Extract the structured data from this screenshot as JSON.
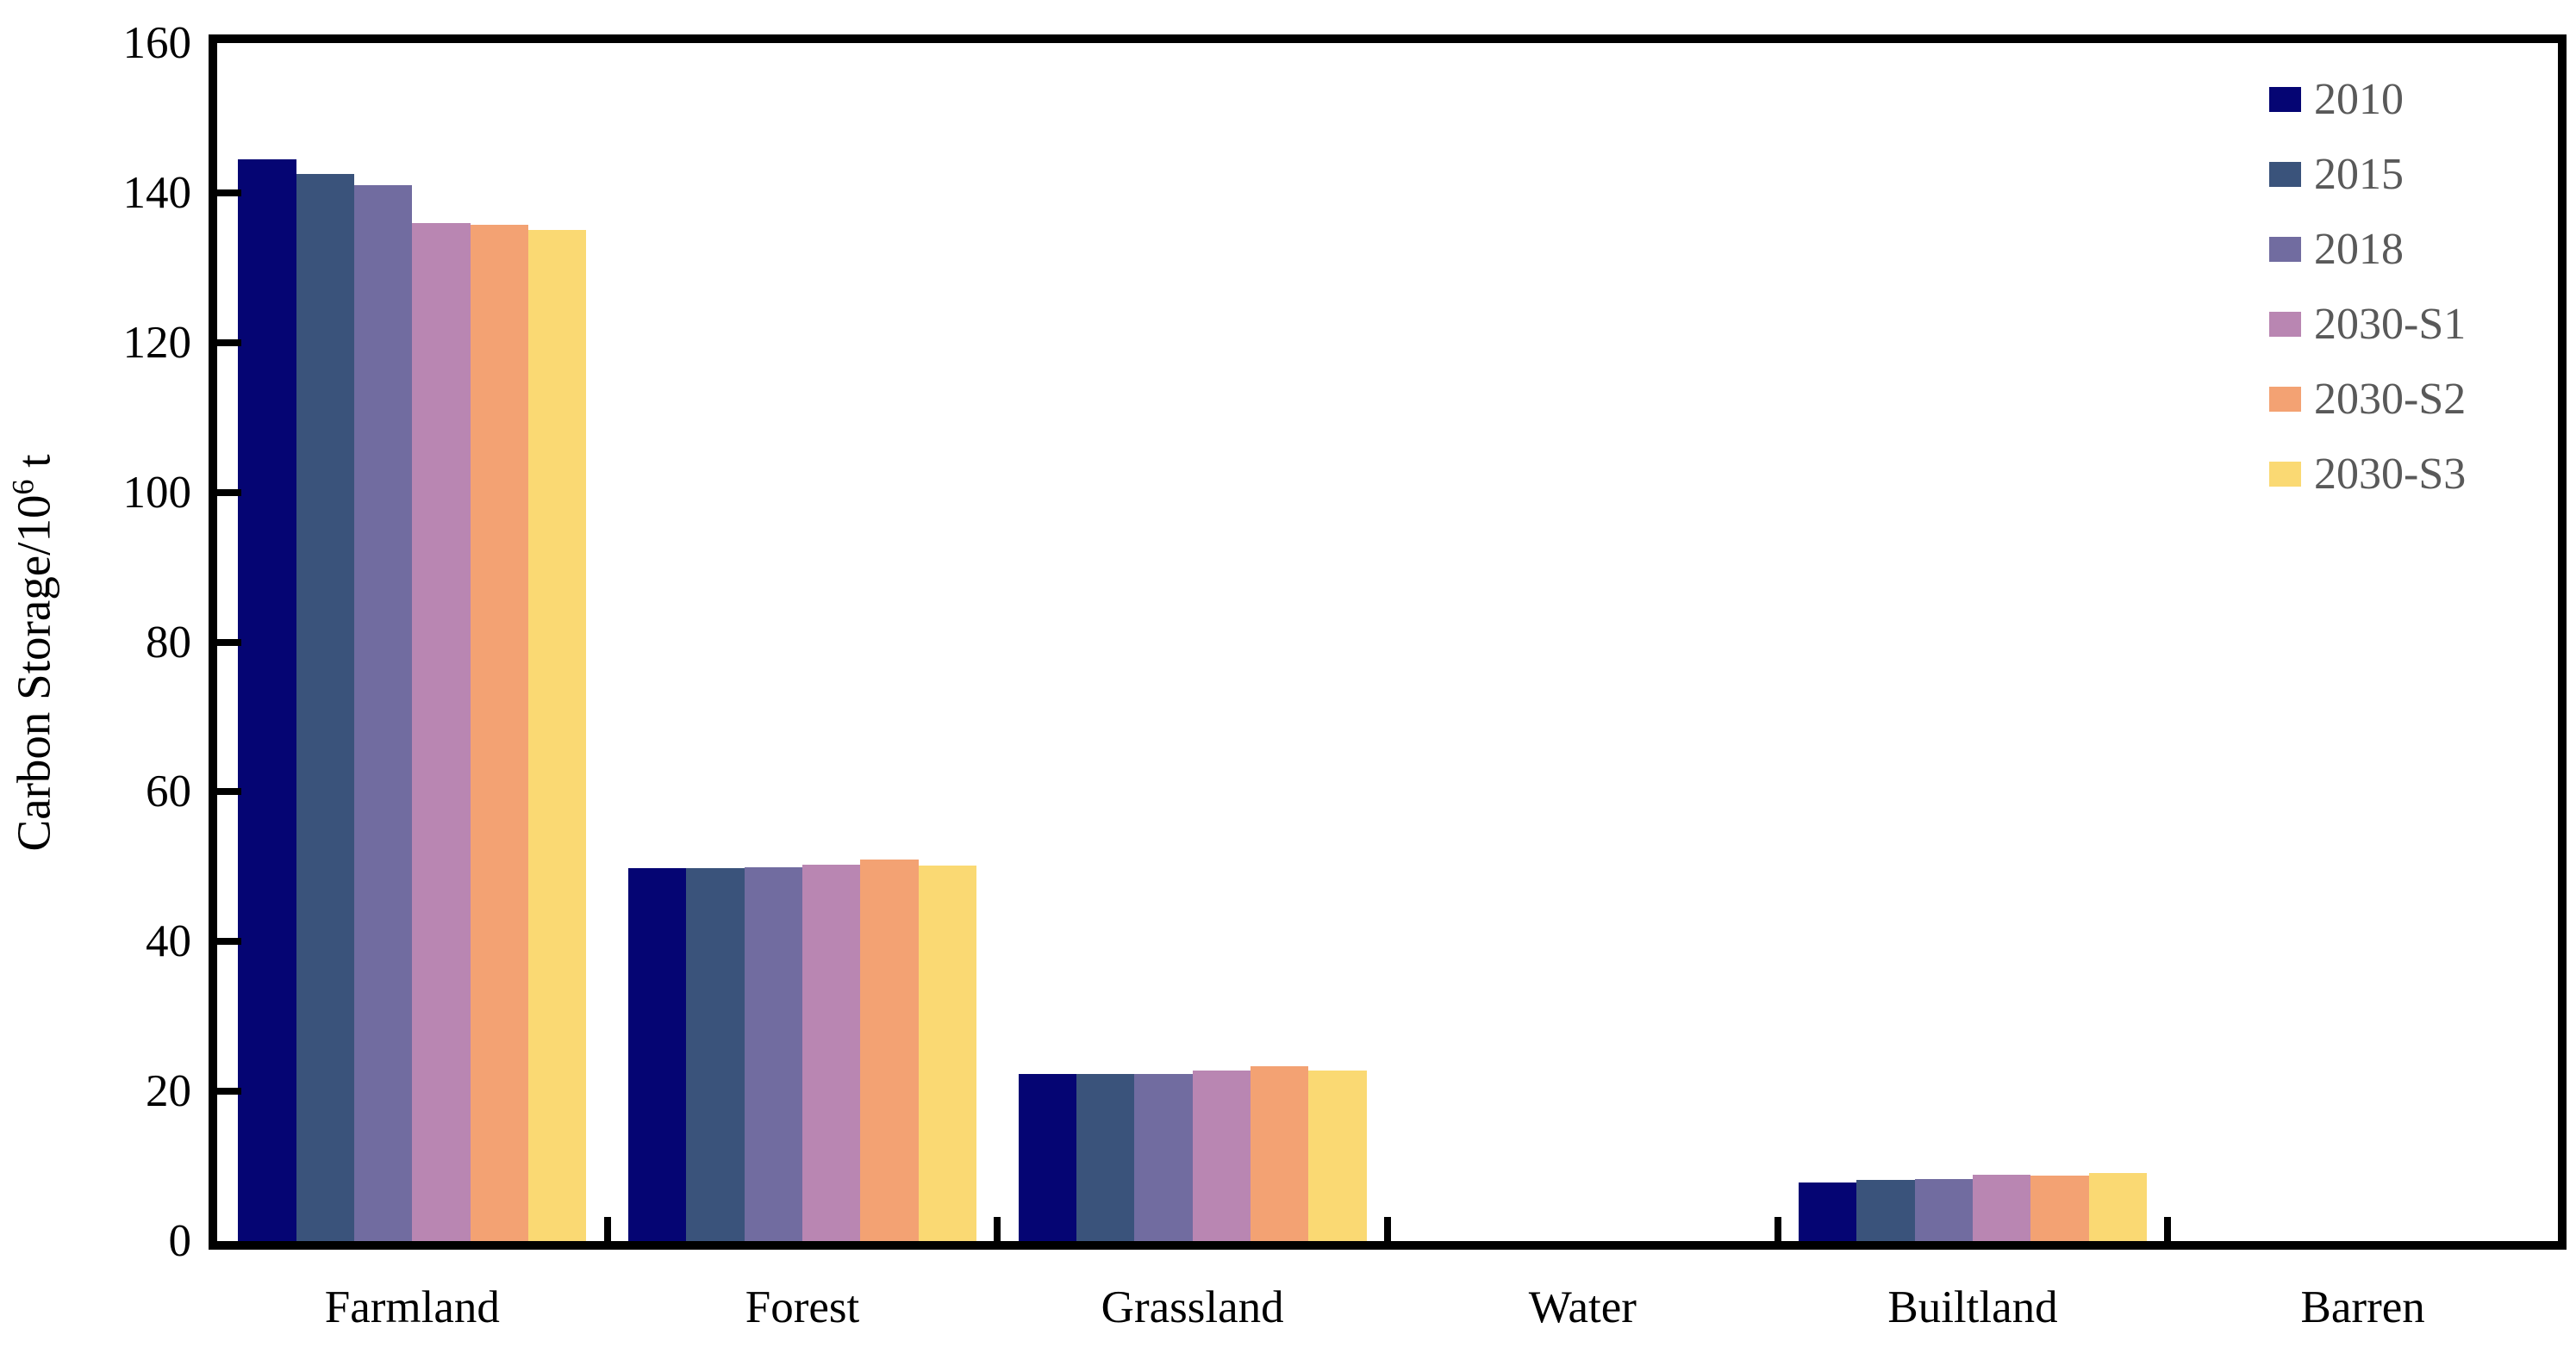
{
  "chart_data": {
    "type": "bar",
    "title": "",
    "categories": [
      "Farmland",
      "Forest",
      "Grassland",
      "Water",
      "Builtland",
      "Barren"
    ],
    "series": [
      {
        "name": "2010",
        "color": "#050573",
        "values": [
          144.5,
          49.8,
          22.3,
          0,
          7.8,
          0
        ]
      },
      {
        "name": "2015",
        "color": "#3A537B",
        "values": [
          142.5,
          49.8,
          22.3,
          0,
          8.2,
          0
        ]
      },
      {
        "name": "2018",
        "color": "#716CA0",
        "values": [
          141.0,
          49.9,
          22.3,
          0,
          8.3,
          0
        ]
      },
      {
        "name": "2030-S1",
        "color": "#B986B2",
        "values": [
          136.0,
          50.3,
          22.8,
          0,
          8.9,
          0
        ]
      },
      {
        "name": "2030-S2",
        "color": "#F3A273",
        "values": [
          135.7,
          51.0,
          23.3,
          0,
          8.8,
          0
        ]
      },
      {
        "name": "2030-S3",
        "color": "#FAD973",
        "values": [
          135.0,
          50.2,
          22.8,
          0,
          9.1,
          0
        ]
      }
    ],
    "ylabel": {
      "prefix": "Carbon Storage/10",
      "sup": "6",
      "suffix": " t"
    },
    "xlabel": "",
    "y_axis": {
      "min": 0,
      "max": 160,
      "step": 20,
      "tick_labels": [
        "0",
        "20",
        "40",
        "60",
        "80",
        "100",
        "120",
        "140",
        "160"
      ]
    },
    "ylim": [
      0,
      160
    ],
    "grid": false,
    "legend_position": "top-right",
    "axis_color": "#000000",
    "legend_text_color": "#595959",
    "background_color": "#FFFFFF"
  }
}
